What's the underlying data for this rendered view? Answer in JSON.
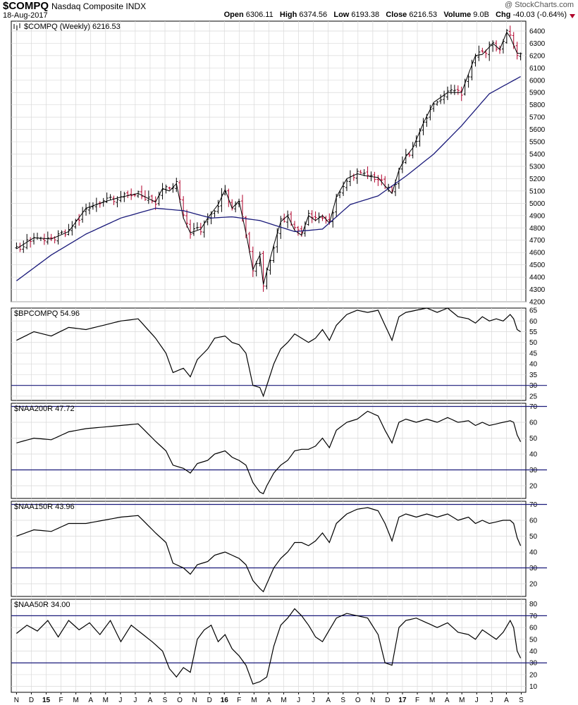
{
  "header": {
    "symbol": "$COMPQ",
    "name": "Nasdaq Composite INDX",
    "date": "18-Aug-2017",
    "watermark": "@ StockCharts.com",
    "open_label": "Open",
    "open": "6306.11",
    "high_label": "High",
    "high": "6374.56",
    "low_label": "Low",
    "low": "6193.38",
    "close_label": "Close",
    "close": "6216.53",
    "volume_label": "Volume",
    "volume": "9.0B",
    "chg_label": "Chg",
    "chg": "-40.03 (-0.64%)",
    "down_icon": "down-triangle-icon"
  },
  "colors": {
    "up": "#000000",
    "down": "#b0002a",
    "ma": "#1a1a7a",
    "reference_line": "#1a1a7a",
    "indicator_line": "#000000",
    "grid": "#d9d9d9"
  },
  "x_axis": {
    "ticks": [
      "N",
      "D",
      "15",
      "F",
      "M",
      "A",
      "M",
      "J",
      "J",
      "A",
      "S",
      "O",
      "N",
      "D",
      "16",
      "F",
      "M",
      "A",
      "M",
      "J",
      "J",
      "A",
      "S",
      "O",
      "N",
      "D",
      "17",
      "F",
      "M",
      "A",
      "M",
      "J",
      "J",
      "A",
      "S"
    ],
    "bold_ticks": [
      "15",
      "16",
      "17"
    ]
  },
  "chart_data": [
    {
      "type": "line",
      "legend": "$COMPQ (Weekly) 6216.53",
      "subtype": "ohlc-weekly-with-moving-average",
      "ylim": [
        4200,
        6480
      ],
      "y_ticks": [
        4200,
        4300,
        4400,
        4500,
        4600,
        4700,
        4800,
        4900,
        5000,
        5100,
        5200,
        5300,
        5400,
        5500,
        5600,
        5700,
        5800,
        5900,
        6000,
        6100,
        6200,
        6300,
        6400
      ],
      "x_range_weeks": [
        0,
        148
      ],
      "key_points": [
        [
          0,
          4630
        ],
        [
          5,
          4720
        ],
        [
          10,
          4710
        ],
        [
          15,
          4770
        ],
        [
          20,
          4960
        ],
        [
          25,
          5010
        ],
        [
          30,
          5050
        ],
        [
          35,
          5080
        ],
        [
          40,
          5010
        ],
        [
          42,
          5120
        ],
        [
          44,
          5100
        ],
        [
          46,
          5160
        ],
        [
          48,
          4880
        ],
        [
          50,
          4760
        ],
        [
          53,
          4790
        ],
        [
          55,
          4880
        ],
        [
          58,
          4990
        ],
        [
          60,
          5110
        ],
        [
          62,
          4960
        ],
        [
          64,
          5020
        ],
        [
          66,
          4760
        ],
        [
          68,
          4460
        ],
        [
          70,
          4580
        ],
        [
          71,
          4340
        ],
        [
          74,
          4660
        ],
        [
          76,
          4850
        ],
        [
          78,
          4900
        ],
        [
          80,
          4780
        ],
        [
          82,
          4740
        ],
        [
          84,
          4900
        ],
        [
          86,
          4860
        ],
        [
          88,
          4900
        ],
        [
          90,
          4840
        ],
        [
          92,
          5050
        ],
        [
          95,
          5200
        ],
        [
          98,
          5240
        ],
        [
          101,
          5220
        ],
        [
          104,
          5210
        ],
        [
          106,
          5140
        ],
        [
          108,
          5080
        ],
        [
          110,
          5270
        ],
        [
          112,
          5380
        ],
        [
          114,
          5450
        ],
        [
          117,
          5650
        ],
        [
          120,
          5820
        ],
        [
          124,
          5900
        ],
        [
          128,
          5900
        ],
        [
          130,
          6050
        ],
        [
          132,
          6200
        ],
        [
          134,
          6210
        ],
        [
          137,
          6300
        ],
        [
          139,
          6250
        ],
        [
          141,
          6390
        ],
        [
          142,
          6350
        ],
        [
          144,
          6220
        ],
        [
          145,
          6216.53
        ]
      ],
      "ma_key_points": [
        [
          0,
          4370
        ],
        [
          10,
          4580
        ],
        [
          20,
          4750
        ],
        [
          30,
          4880
        ],
        [
          40,
          4960
        ],
        [
          48,
          4940
        ],
        [
          56,
          4880
        ],
        [
          62,
          4890
        ],
        [
          70,
          4860
        ],
        [
          80,
          4770
        ],
        [
          88,
          4790
        ],
        [
          96,
          4990
        ],
        [
          104,
          5060
        ],
        [
          112,
          5220
        ],
        [
          120,
          5400
        ],
        [
          128,
          5630
        ],
        [
          136,
          5890
        ],
        [
          145,
          6030
        ]
      ]
    },
    {
      "type": "line",
      "legend": "$BPCOMPQ 54.96",
      "ylim": [
        23,
        66
      ],
      "y_ticks": [
        25,
        30,
        35,
        40,
        45,
        50,
        55,
        60,
        65
      ],
      "reference_lines": [
        30
      ],
      "key_points": [
        [
          0,
          51
        ],
        [
          5,
          55
        ],
        [
          10,
          53
        ],
        [
          15,
          57
        ],
        [
          20,
          56
        ],
        [
          25,
          58
        ],
        [
          30,
          60
        ],
        [
          35,
          61
        ],
        [
          40,
          52
        ],
        [
          43,
          45
        ],
        [
          45,
          36
        ],
        [
          48,
          38
        ],
        [
          50,
          34
        ],
        [
          52,
          42
        ],
        [
          55,
          47
        ],
        [
          57,
          52
        ],
        [
          60,
          53
        ],
        [
          62,
          50
        ],
        [
          64,
          49
        ],
        [
          66,
          45
        ],
        [
          68,
          30
        ],
        [
          70,
          29
        ],
        [
          71,
          25
        ],
        [
          72,
          30
        ],
        [
          74,
          40
        ],
        [
          76,
          47
        ],
        [
          78,
          50
        ],
        [
          80,
          54
        ],
        [
          82,
          52
        ],
        [
          84,
          50
        ],
        [
          86,
          52
        ],
        [
          88,
          56
        ],
        [
          90,
          51
        ],
        [
          92,
          58
        ],
        [
          95,
          63
        ],
        [
          98,
          65
        ],
        [
          101,
          64
        ],
        [
          104,
          65
        ],
        [
          106,
          58
        ],
        [
          108,
          51
        ],
        [
          110,
          62
        ],
        [
          112,
          64
        ],
        [
          115,
          65
        ],
        [
          118,
          66
        ],
        [
          121,
          64
        ],
        [
          124,
          66
        ],
        [
          127,
          62
        ],
        [
          130,
          61
        ],
        [
          132,
          59
        ],
        [
          134,
          62
        ],
        [
          136,
          60
        ],
        [
          138,
          61
        ],
        [
          140,
          60
        ],
        [
          142,
          63
        ],
        [
          143,
          61
        ],
        [
          144,
          56
        ],
        [
          145,
          54.96
        ]
      ]
    },
    {
      "type": "line",
      "legend": "$NAA200R 47.72",
      "ylim": [
        12,
        72
      ],
      "y_ticks": [
        20,
        30,
        40,
        50,
        60,
        70
      ],
      "reference_lines": [
        30,
        70
      ],
      "key_points": [
        [
          0,
          47
        ],
        [
          5,
          50
        ],
        [
          10,
          49
        ],
        [
          15,
          54
        ],
        [
          20,
          56
        ],
        [
          25,
          57
        ],
        [
          30,
          58
        ],
        [
          35,
          59
        ],
        [
          40,
          48
        ],
        [
          43,
          42
        ],
        [
          45,
          33
        ],
        [
          48,
          31
        ],
        [
          50,
          28
        ],
        [
          52,
          34
        ],
        [
          55,
          36
        ],
        [
          57,
          40
        ],
        [
          60,
          42
        ],
        [
          62,
          38
        ],
        [
          64,
          36
        ],
        [
          66,
          33
        ],
        [
          68,
          22
        ],
        [
          70,
          16
        ],
        [
          71,
          15
        ],
        [
          72,
          20
        ],
        [
          74,
          28
        ],
        [
          76,
          33
        ],
        [
          78,
          36
        ],
        [
          80,
          42
        ],
        [
          82,
          43
        ],
        [
          84,
          43
        ],
        [
          86,
          45
        ],
        [
          88,
          50
        ],
        [
          90,
          44
        ],
        [
          92,
          55
        ],
        [
          95,
          60
        ],
        [
          98,
          62
        ],
        [
          101,
          67
        ],
        [
          104,
          64
        ],
        [
          106,
          55
        ],
        [
          108,
          47
        ],
        [
          110,
          60
        ],
        [
          112,
          62
        ],
        [
          115,
          60
        ],
        [
          118,
          62
        ],
        [
          121,
          60
        ],
        [
          124,
          63
        ],
        [
          127,
          60
        ],
        [
          130,
          61
        ],
        [
          132,
          58
        ],
        [
          134,
          60
        ],
        [
          136,
          58
        ],
        [
          138,
          59
        ],
        [
          140,
          60
        ],
        [
          142,
          61
        ],
        [
          143,
          60
        ],
        [
          144,
          52
        ],
        [
          145,
          47.72
        ]
      ]
    },
    {
      "type": "line",
      "legend": "$NAA150R 43.96",
      "ylim": [
        12,
        72
      ],
      "y_ticks": [
        20,
        30,
        40,
        50,
        60,
        70
      ],
      "reference_lines": [
        30,
        70
      ],
      "key_points": [
        [
          0,
          50
        ],
        [
          5,
          54
        ],
        [
          10,
          53
        ],
        [
          15,
          58
        ],
        [
          20,
          58
        ],
        [
          25,
          60
        ],
        [
          30,
          62
        ],
        [
          35,
          63
        ],
        [
          40,
          52
        ],
        [
          43,
          46
        ],
        [
          45,
          33
        ],
        [
          48,
          30
        ],
        [
          50,
          26
        ],
        [
          52,
          32
        ],
        [
          55,
          34
        ],
        [
          57,
          38
        ],
        [
          60,
          40
        ],
        [
          62,
          38
        ],
        [
          64,
          36
        ],
        [
          66,
          32
        ],
        [
          68,
          22
        ],
        [
          70,
          17
        ],
        [
          71,
          15
        ],
        [
          72,
          20
        ],
        [
          74,
          30
        ],
        [
          76,
          36
        ],
        [
          78,
          40
        ],
        [
          80,
          46
        ],
        [
          82,
          46
        ],
        [
          84,
          44
        ],
        [
          86,
          47
        ],
        [
          88,
          52
        ],
        [
          90,
          46
        ],
        [
          92,
          58
        ],
        [
          95,
          64
        ],
        [
          98,
          67
        ],
        [
          101,
          68
        ],
        [
          104,
          66
        ],
        [
          106,
          58
        ],
        [
          108,
          47
        ],
        [
          110,
          62
        ],
        [
          112,
          64
        ],
        [
          115,
          62
        ],
        [
          118,
          64
        ],
        [
          121,
          62
        ],
        [
          124,
          64
        ],
        [
          127,
          60
        ],
        [
          130,
          62
        ],
        [
          132,
          58
        ],
        [
          134,
          60
        ],
        [
          136,
          58
        ],
        [
          138,
          59
        ],
        [
          140,
          60
        ],
        [
          142,
          60
        ],
        [
          143,
          58
        ],
        [
          144,
          49
        ],
        [
          145,
          43.96
        ]
      ]
    },
    {
      "type": "line",
      "legend": "$NAA50R 34.00",
      "ylim": [
        5,
        84
      ],
      "y_ticks": [
        10,
        20,
        30,
        40,
        50,
        60,
        70,
        80
      ],
      "reference_lines": [
        30,
        70
      ],
      "key_points": [
        [
          0,
          55
        ],
        [
          3,
          62
        ],
        [
          6,
          57
        ],
        [
          9,
          66
        ],
        [
          12,
          52
        ],
        [
          15,
          66
        ],
        [
          18,
          58
        ],
        [
          21,
          64
        ],
        [
          24,
          54
        ],
        [
          27,
          66
        ],
        [
          30,
          48
        ],
        [
          33,
          62
        ],
        [
          36,
          55
        ],
        [
          39,
          48
        ],
        [
          42,
          40
        ],
        [
          44,
          25
        ],
        [
          46,
          18
        ],
        [
          48,
          26
        ],
        [
          50,
          22
        ],
        [
          52,
          50
        ],
        [
          54,
          58
        ],
        [
          56,
          62
        ],
        [
          58,
          48
        ],
        [
          60,
          54
        ],
        [
          62,
          42
        ],
        [
          64,
          36
        ],
        [
          66,
          28
        ],
        [
          68,
          12
        ],
        [
          70,
          14
        ],
        [
          72,
          18
        ],
        [
          74,
          44
        ],
        [
          76,
          62
        ],
        [
          78,
          68
        ],
        [
          80,
          76
        ],
        [
          82,
          70
        ],
        [
          84,
          62
        ],
        [
          86,
          52
        ],
        [
          88,
          48
        ],
        [
          90,
          58
        ],
        [
          92,
          68
        ],
        [
          95,
          72
        ],
        [
          98,
          70
        ],
        [
          101,
          68
        ],
        [
          104,
          54
        ],
        [
          106,
          30
        ],
        [
          108,
          28
        ],
        [
          110,
          60
        ],
        [
          112,
          66
        ],
        [
          115,
          68
        ],
        [
          118,
          64
        ],
        [
          121,
          60
        ],
        [
          124,
          64
        ],
        [
          127,
          56
        ],
        [
          130,
          54
        ],
        [
          132,
          50
        ],
        [
          134,
          58
        ],
        [
          136,
          54
        ],
        [
          138,
          50
        ],
        [
          140,
          56
        ],
        [
          142,
          66
        ],
        [
          143,
          60
        ],
        [
          144,
          40
        ],
        [
          145,
          34
        ]
      ]
    }
  ]
}
